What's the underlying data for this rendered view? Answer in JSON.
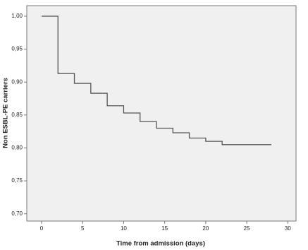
{
  "chart_data": {
    "type": "step",
    "x_label": "Time from admission (days)",
    "y_label": "Non ESBL-PE carriers",
    "x": [
      0,
      2,
      4,
      6,
      8,
      10,
      12,
      14,
      16,
      18,
      20,
      22,
      28
    ],
    "values": [
      1.0,
      0.913,
      0.898,
      0.883,
      0.864,
      0.853,
      0.84,
      0.83,
      0.823,
      0.815,
      0.81,
      0.805,
      0.805
    ],
    "color": "#555555",
    "xlim": [
      -1.8,
      31
    ],
    "ylim": [
      0.689,
      1.016
    ],
    "xticks": [
      0,
      5,
      10,
      15,
      20,
      25,
      30
    ],
    "yticks": [
      {
        "value": 0.7,
        "label": "0,70"
      },
      {
        "value": 0.75,
        "label": "0,75"
      },
      {
        "value": 0.8,
        "label": "0,80"
      },
      {
        "value": 0.85,
        "label": "0,85"
      },
      {
        "value": 0.9,
        "label": "0,90"
      },
      {
        "value": 0.95,
        "label": "0,95"
      },
      {
        "value": 1.0,
        "label": "1,00"
      }
    ]
  }
}
